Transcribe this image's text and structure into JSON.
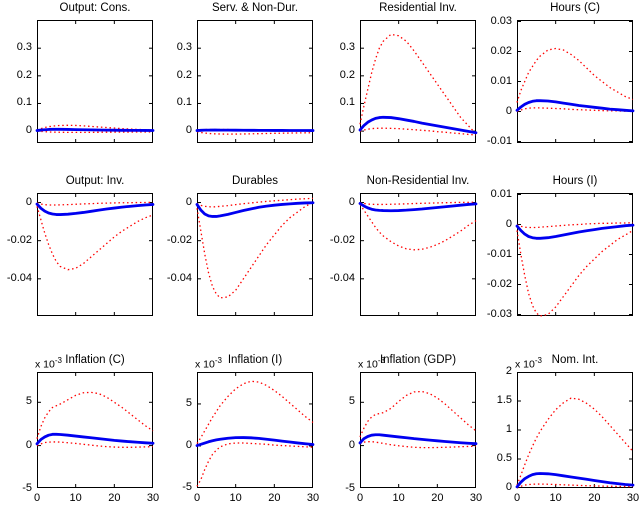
{
  "figure_title": "",
  "colors": {
    "median_line": "#0000f0",
    "band_line": "#ff0000",
    "axis": "#000000",
    "background": "#ffffff"
  },
  "chart_data": {
    "type": "line",
    "layout": "3x4-subplot-grid",
    "x_label": "",
    "x": [
      0,
      1,
      2,
      3,
      4,
      5,
      6,
      8,
      10,
      12,
      14,
      16,
      18,
      20,
      22,
      24,
      26,
      28,
      30
    ],
    "x_ticks": [
      0,
      10,
      20,
      30
    ],
    "x_tick_labels": [
      "0",
      "10",
      "20",
      "30"
    ],
    "xlim": [
      0,
      30
    ],
    "series_legend": [
      {
        "name": "median",
        "style": "solid",
        "color": "#0000f0",
        "width": 2.8
      },
      {
        "name": "upper-band",
        "style": "dotted",
        "color": "#ff0000",
        "width": 1.3
      },
      {
        "name": "lower-band",
        "style": "dotted",
        "color": "#ff0000",
        "width": 1.3
      }
    ],
    "subplots": [
      {
        "title": "Output: Cons.",
        "ylim": [
          -0.043,
          0.402
        ],
        "yticks": [
          0,
          0.1,
          0.2,
          0.3
        ],
        "ytick_labels": [
          "0",
          "0.1",
          "0.2",
          "0.3"
        ],
        "scale_base": null,
        "scale_exp": null,
        "show_x_tick_labels": false,
        "median": [
          0.002,
          0.004,
          0.005,
          0.006,
          0.0065,
          0.0066,
          0.0065,
          0.006,
          0.0055,
          0.005,
          0.0045,
          0.004,
          0.0037,
          0.0033,
          0.003,
          0.0028,
          0.0026,
          0.0024,
          0.0022
        ],
        "upper": [
          0.004,
          0.009,
          0.013,
          0.016,
          0.018,
          0.0195,
          0.0205,
          0.021,
          0.0205,
          0.019,
          0.017,
          0.015,
          0.013,
          0.011,
          0.009,
          0.0075,
          0.006,
          0.005,
          0.004
        ],
        "lower": [
          0.0,
          -0.001,
          -0.002,
          -0.003,
          -0.0035,
          -0.004,
          -0.0042,
          -0.0045,
          -0.0046,
          -0.0046,
          -0.0045,
          -0.0043,
          -0.004,
          -0.0038,
          -0.0036,
          -0.0034,
          -0.0032,
          -0.003,
          -0.0029
        ]
      },
      {
        "title": "Serv. & Non-Dur.",
        "ylim": [
          -0.043,
          0.402
        ],
        "yticks": [
          0,
          0.1,
          0.2,
          0.3
        ],
        "ytick_labels": [
          "0",
          "0.1",
          "0.2",
          "0.3"
        ],
        "scale_base": null,
        "scale_exp": null,
        "show_x_tick_labels": false,
        "median": [
          0.002,
          0.003,
          0.0035,
          0.0037,
          0.0038,
          0.0038,
          0.0037,
          0.0036,
          0.0034,
          0.0032,
          0.003,
          0.0028,
          0.0027,
          0.0025,
          0.0024,
          0.0023,
          0.0022,
          0.0021,
          0.002
        ],
        "upper": [
          0.004,
          0.005,
          0.0055,
          0.0058,
          0.0059,
          0.0059,
          0.0058,
          0.0056,
          0.0053,
          0.005,
          0.0047,
          0.0044,
          0.0042,
          0.004,
          0.0038,
          0.0036,
          0.0035,
          0.0034,
          0.0033
        ],
        "lower": [
          -0.002,
          -0.005,
          -0.007,
          -0.0085,
          -0.0095,
          -0.01,
          -0.0105,
          -0.0108,
          -0.0107,
          -0.0103,
          -0.0098,
          -0.0092,
          -0.0086,
          -0.008,
          -0.0075,
          -0.007,
          -0.0066,
          -0.0062,
          -0.0059
        ]
      },
      {
        "title": "Residential Inv.",
        "ylim": [
          -0.043,
          0.402
        ],
        "yticks": [
          0,
          0.1,
          0.2,
          0.3
        ],
        "ytick_labels": [
          "0",
          "0.1",
          "0.2",
          "0.3"
        ],
        "scale_base": null,
        "scale_exp": null,
        "show_x_tick_labels": false,
        "median": [
          0.004,
          0.02,
          0.032,
          0.04,
          0.046,
          0.049,
          0.05,
          0.049,
          0.045,
          0.04,
          0.035,
          0.029,
          0.024,
          0.019,
          0.014,
          0.009,
          0.004,
          -0.001,
          -0.006
        ],
        "upper": [
          0.025,
          0.09,
          0.15,
          0.21,
          0.26,
          0.3,
          0.325,
          0.35,
          0.345,
          0.325,
          0.29,
          0.25,
          0.21,
          0.17,
          0.13,
          0.09,
          0.05,
          0.02,
          -0.01
        ],
        "lower": [
          0.0,
          0.004,
          0.007,
          0.009,
          0.01,
          0.0105,
          0.0105,
          0.01,
          0.009,
          0.007,
          0.005,
          0.003,
          0.001,
          -0.002,
          -0.004,
          -0.007,
          -0.009,
          -0.012,
          -0.014
        ]
      },
      {
        "title": "Hours (C)",
        "ylim": [
          -0.0105,
          0.0305
        ],
        "yticks": [
          -0.01,
          0,
          0.01,
          0.02,
          0.03
        ],
        "ytick_labels": [
          "-0.01",
          "0",
          "0.01",
          "0.02",
          "0.03"
        ],
        "scale_base": null,
        "scale_exp": null,
        "show_x_tick_labels": false,
        "median": [
          0.0004,
          0.0015,
          0.0024,
          0.003,
          0.0034,
          0.0036,
          0.0036,
          0.0035,
          0.0032,
          0.0028,
          0.0024,
          0.002,
          0.0017,
          0.0014,
          0.0011,
          0.0008,
          0.0006,
          0.0004,
          0.0002
        ],
        "upper": [
          0.003,
          0.007,
          0.01,
          0.013,
          0.015,
          0.017,
          0.0185,
          0.0205,
          0.021,
          0.0205,
          0.019,
          0.017,
          0.0145,
          0.012,
          0.01,
          0.008,
          0.0065,
          0.005,
          0.004
        ],
        "lower": [
          0.0,
          0.0005,
          0.0009,
          0.0011,
          0.0012,
          0.0012,
          0.0012,
          0.0011,
          0.001,
          0.0009,
          0.0007,
          0.0006,
          0.0005,
          0.0004,
          0.0003,
          0.0002,
          0.0002,
          0.0001,
          0.0001
        ]
      },
      {
        "title": "Output: Inv.",
        "ylim": [
          -0.0595,
          0.005
        ],
        "yticks": [
          -0.04,
          -0.02,
          0
        ],
        "ytick_labels": [
          "-0.04",
          "-0.02",
          "0"
        ],
        "scale_base": null,
        "scale_exp": null,
        "show_x_tick_labels": false,
        "median": [
          -0.0008,
          -0.003,
          -0.0045,
          -0.0055,
          -0.006,
          -0.0063,
          -0.0063,
          -0.0061,
          -0.0057,
          -0.0052,
          -0.0046,
          -0.004,
          -0.0034,
          -0.0029,
          -0.0024,
          -0.002,
          -0.0016,
          -0.0013,
          -0.001
        ],
        "upper": [
          -0.0002,
          -0.0008,
          -0.0011,
          -0.0013,
          -0.0013,
          -0.0013,
          -0.0012,
          -0.0011,
          -0.0009,
          -0.0007,
          -0.0006,
          -0.0004,
          -0.0003,
          -0.0002,
          -0.0001,
          -0.0001,
          0.0,
          0.0,
          0.0001
        ],
        "lower": [
          -0.002,
          -0.009,
          -0.016,
          -0.022,
          -0.027,
          -0.031,
          -0.0335,
          -0.0352,
          -0.0345,
          -0.032,
          -0.0285,
          -0.025,
          -0.0215,
          -0.018,
          -0.015,
          -0.0125,
          -0.01,
          -0.008,
          -0.0065
        ]
      },
      {
        "title": "Durables",
        "ylim": [
          -0.0595,
          0.005
        ],
        "yticks": [
          -0.04,
          -0.02,
          0
        ],
        "ytick_labels": [
          "-0.04",
          "-0.02",
          "0"
        ],
        "scale_base": null,
        "scale_exp": null,
        "show_x_tick_labels": false,
        "median": [
          -0.001,
          -0.004,
          -0.006,
          -0.007,
          -0.0073,
          -0.0073,
          -0.007,
          -0.0062,
          -0.0052,
          -0.0042,
          -0.0033,
          -0.0025,
          -0.0019,
          -0.0014,
          -0.001,
          -0.0007,
          -0.0004,
          -0.0002,
          -0.0001
        ],
        "upper": [
          -0.0005,
          -0.0015,
          -0.002,
          -0.0022,
          -0.0023,
          -0.0022,
          -0.002,
          -0.0016,
          -0.0011,
          -0.0006,
          -0.0002,
          0.0002,
          0.0006,
          0.0009,
          0.0012,
          0.0015,
          0.0018,
          0.002,
          0.0022
        ],
        "lower": [
          -0.003,
          -0.015,
          -0.027,
          -0.037,
          -0.044,
          -0.048,
          -0.05,
          -0.0495,
          -0.046,
          -0.04,
          -0.034,
          -0.028,
          -0.022,
          -0.017,
          -0.012,
          -0.008,
          -0.005,
          -0.002,
          0.0
        ]
      },
      {
        "title": "Non-Residential Inv.",
        "ylim": [
          -0.0595,
          0.005
        ],
        "yticks": [
          -0.04,
          -0.02,
          0
        ],
        "ytick_labels": [
          "-0.04",
          "-0.02",
          "0"
        ],
        "scale_base": null,
        "scale_exp": null,
        "show_x_tick_labels": false,
        "median": [
          -0.0005,
          -0.0018,
          -0.0028,
          -0.0035,
          -0.0039,
          -0.0041,
          -0.0042,
          -0.0043,
          -0.0042,
          -0.004,
          -0.0037,
          -0.0034,
          -0.003,
          -0.0026,
          -0.0022,
          -0.0018,
          -0.0014,
          -0.001,
          -0.0007
        ],
        "upper": [
          -0.0001,
          -0.0005,
          -0.0008,
          -0.0009,
          -0.001,
          -0.001,
          -0.001,
          -0.0009,
          -0.0008,
          -0.0007,
          -0.0005,
          -0.0004,
          -0.0003,
          -0.0002,
          -0.0001,
          0.0,
          0.0001,
          0.0001,
          0.0002
        ],
        "lower": [
          -0.001,
          -0.004,
          -0.007,
          -0.01,
          -0.013,
          -0.0155,
          -0.0175,
          -0.0205,
          -0.0228,
          -0.0243,
          -0.0248,
          -0.0245,
          -0.0235,
          -0.022,
          -0.02,
          -0.0175,
          -0.015,
          -0.012,
          -0.0095
        ]
      },
      {
        "title": "Hours (I)",
        "ylim": [
          -0.0305,
          0.0105
        ],
        "yticks": [
          -0.03,
          -0.02,
          -0.01,
          0,
          0.01
        ],
        "ytick_labels": [
          "-0.03",
          "-0.02",
          "-0.01",
          "0",
          "0.01"
        ],
        "scale_base": null,
        "scale_exp": null,
        "show_x_tick_labels": false,
        "median": [
          -0.0005,
          -0.002,
          -0.0032,
          -0.004,
          -0.0044,
          -0.0046,
          -0.0046,
          -0.0044,
          -0.004,
          -0.0035,
          -0.003,
          -0.0025,
          -0.0021,
          -0.0017,
          -0.0013,
          -0.001,
          -0.0007,
          -0.0004,
          -0.0002
        ],
        "upper": [
          -0.0001,
          -0.0006,
          -0.0009,
          -0.001,
          -0.001,
          -0.001,
          -0.0009,
          -0.0007,
          -0.0005,
          -0.0003,
          -0.0001,
          0.0,
          0.0002,
          0.0003,
          0.0004,
          0.0004,
          0.0005,
          0.0005,
          0.0006
        ],
        "lower": [
          -0.002,
          -0.01,
          -0.017,
          -0.023,
          -0.027,
          -0.0295,
          -0.0305,
          -0.03,
          -0.0275,
          -0.024,
          -0.0205,
          -0.017,
          -0.014,
          -0.0115,
          -0.009,
          -0.007,
          -0.005,
          -0.0035,
          -0.002
        ]
      },
      {
        "title": "Inflation (C)",
        "ylim": [
          -4.9,
          8.5
        ],
        "yticks": [
          -5,
          0,
          5
        ],
        "ytick_labels": [
          "-5",
          "0",
          "5"
        ],
        "scale_base": "x 10",
        "scale_exp": "-3",
        "show_x_tick_labels": true,
        "median": [
          0.2,
          0.7,
          1.0,
          1.2,
          1.3,
          1.3,
          1.28,
          1.2,
          1.1,
          1.0,
          0.9,
          0.8,
          0.7,
          0.6,
          0.52,
          0.45,
          0.38,
          0.32,
          0.27
        ],
        "upper": [
          0.8,
          2.2,
          3.2,
          3.9,
          4.4,
          4.6,
          4.8,
          5.3,
          5.8,
          6.1,
          6.15,
          6.0,
          5.6,
          5.0,
          4.4,
          3.7,
          3.0,
          2.3,
          1.7
        ],
        "lower": [
          0.0,
          0.2,
          0.35,
          0.4,
          0.42,
          0.42,
          0.4,
          0.33,
          0.25,
          0.15,
          0.05,
          -0.05,
          -0.12,
          -0.17,
          -0.2,
          -0.2,
          -0.18,
          -0.15,
          -0.12
        ]
      },
      {
        "title": "Inflation (I)",
        "ylim": [
          -5.0,
          8.8
        ],
        "yticks": [
          -5,
          0,
          5
        ],
        "ytick_labels": [
          "-5",
          "0",
          "5"
        ],
        "scale_base": "x 10",
        "scale_exp": "-3",
        "show_x_tick_labels": true,
        "median": [
          0.05,
          0.2,
          0.35,
          0.5,
          0.62,
          0.72,
          0.8,
          0.92,
          0.99,
          1.0,
          0.97,
          0.9,
          0.8,
          0.7,
          0.58,
          0.47,
          0.36,
          0.26,
          0.17
        ],
        "upper": [
          0.3,
          1.0,
          1.8,
          2.6,
          3.4,
          4.1,
          4.8,
          5.9,
          6.8,
          7.4,
          7.7,
          7.6,
          7.2,
          6.6,
          5.9,
          5.1,
          4.3,
          3.5,
          2.8
        ],
        "lower": [
          -4.8,
          -4.0,
          -2.8,
          -1.8,
          -1.0,
          -0.5,
          -0.1,
          0.25,
          0.35,
          0.35,
          0.3,
          0.25,
          0.2,
          0.1,
          0.05,
          0.0,
          -0.05,
          -0.1,
          -0.15
        ]
      },
      {
        "title": "Inflation (GDP)",
        "ylim": [
          -4.9,
          8.5
        ],
        "yticks": [
          -5,
          0,
          5
        ],
        "ytick_labels": [
          "-5",
          "0",
          "5"
        ],
        "scale_base": "x 10",
        "scale_exp": "-3",
        "show_x_tick_labels": true,
        "median": [
          0.3,
          0.8,
          1.05,
          1.2,
          1.25,
          1.25,
          1.2,
          1.1,
          1.0,
          0.9,
          0.8,
          0.72,
          0.63,
          0.55,
          0.47,
          0.4,
          0.33,
          0.27,
          0.22
        ],
        "upper": [
          1.0,
          2.0,
          2.8,
          3.3,
          3.6,
          3.7,
          3.8,
          4.3,
          5.1,
          5.8,
          6.2,
          6.25,
          6.0,
          5.5,
          4.8,
          4.0,
          3.2,
          2.4,
          1.7
        ],
        "lower": [
          0.2,
          0.4,
          0.45,
          0.45,
          0.4,
          0.33,
          0.25,
          0.1,
          -0.02,
          -0.12,
          -0.2,
          -0.23,
          -0.24,
          -0.22,
          -0.2,
          -0.17,
          -0.13,
          -0.1,
          -0.07
        ]
      },
      {
        "title": "Nom. Int.",
        "ylim": [
          0,
          2
        ],
        "yticks": [
          0,
          0.5,
          1,
          1.5,
          2
        ],
        "ytick_labels": [
          "0",
          "0.5",
          "1",
          "1.5",
          "2"
        ],
        "scale_base": "x 10",
        "scale_exp": "-3",
        "show_x_tick_labels": true,
        "median": [
          0.02,
          0.1,
          0.16,
          0.2,
          0.23,
          0.245,
          0.25,
          0.245,
          0.23,
          0.21,
          0.19,
          0.17,
          0.15,
          0.13,
          0.11,
          0.09,
          0.075,
          0.06,
          0.05
        ],
        "upper": [
          0.05,
          0.22,
          0.4,
          0.57,
          0.72,
          0.86,
          0.98,
          1.18,
          1.35,
          1.47,
          1.55,
          1.53,
          1.46,
          1.36,
          1.23,
          1.08,
          0.93,
          0.78,
          0.63
        ],
        "lower": [
          0.0,
          0.03,
          0.05,
          0.06,
          0.065,
          0.068,
          0.068,
          0.065,
          0.06,
          0.055,
          0.05,
          0.045,
          0.04,
          0.037,
          0.033,
          0.03,
          0.027,
          0.025,
          0.023
        ]
      }
    ]
  }
}
